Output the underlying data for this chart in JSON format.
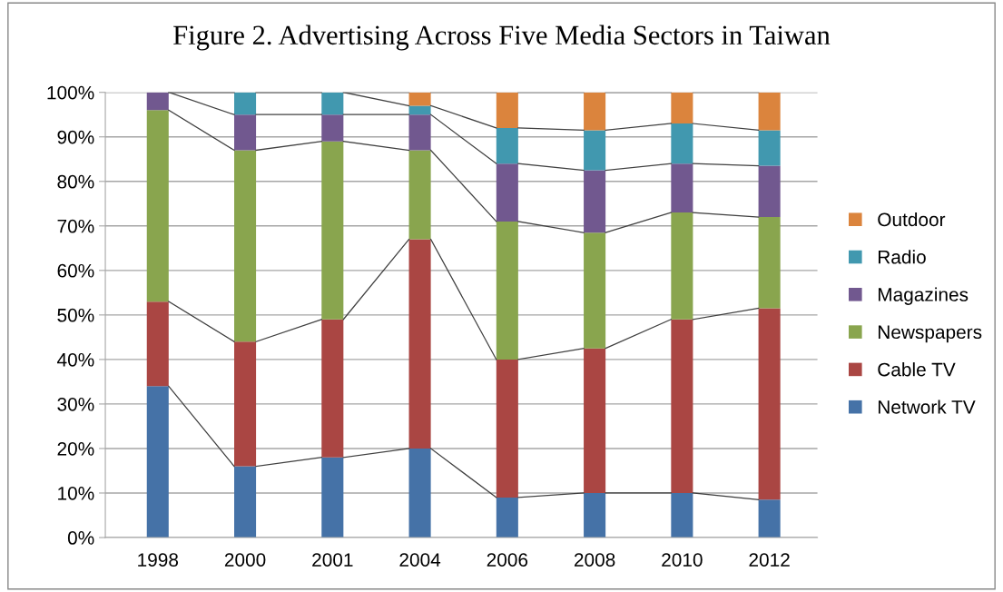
{
  "chart_data": {
    "type": "bar",
    "title": "Figure 2. Advertising Across Five Media Sectors in Taiwan",
    "stacked": true,
    "categories": [
      "1998",
      "2000",
      "2001",
      "2004",
      "2006",
      "2008",
      "2010",
      "2012"
    ],
    "series": [
      {
        "name": "Network TV",
        "color": "#4572a7",
        "values": [
          34,
          16,
          18,
          20,
          9,
          10,
          10,
          8.5
        ]
      },
      {
        "name": "Cable TV",
        "color": "#aa4643",
        "values": [
          19,
          28,
          31,
          47,
          31,
          32.5,
          39,
          43
        ]
      },
      {
        "name": "Newspapers",
        "color": "#89a54e",
        "values": [
          43,
          43,
          40,
          20,
          31,
          26,
          24,
          20.5
        ]
      },
      {
        "name": "Magazines",
        "color": "#71588f",
        "values": [
          4,
          8,
          6,
          8,
          13,
          14,
          11,
          11.5
        ]
      },
      {
        "name": "Radio",
        "color": "#4198af",
        "values": [
          0,
          5,
          5,
          2,
          8,
          9,
          9,
          8
        ]
      },
      {
        "name": "Outdoor",
        "color": "#db843d",
        "values": [
          0,
          0,
          0,
          3,
          8,
          8.5,
          7,
          8.5
        ]
      }
    ],
    "ylim": [
      0,
      100
    ],
    "yticks": [
      {
        "value": 0,
        "label": "0%"
      },
      {
        "value": 10,
        "label": "10%"
      },
      {
        "value": 20,
        "label": "20%"
      },
      {
        "value": 30,
        "label": "30%"
      },
      {
        "value": 40,
        "label": "40%"
      },
      {
        "value": 50,
        "label": "50%"
      },
      {
        "value": 60,
        "label": "60%"
      },
      {
        "value": 70,
        "label": "70%"
      },
      {
        "value": 80,
        "label": "80%"
      },
      {
        "value": 90,
        "label": "90%"
      },
      {
        "value": 100,
        "label": "100%"
      }
    ],
    "grid": "y",
    "legend": "right"
  }
}
